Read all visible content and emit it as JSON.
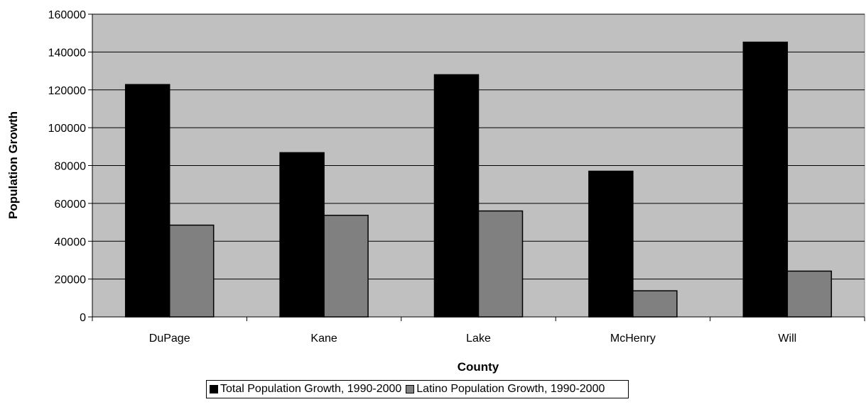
{
  "chart_data": {
    "type": "bar",
    "title": "",
    "xlabel": "County",
    "ylabel": "Population Growth",
    "categories": [
      "DuPage",
      "Kane",
      "Lake",
      "McHenry",
      "Will"
    ],
    "series": [
      {
        "name": "Total Population Growth, 1990-2000",
        "color": "#000000",
        "values": [
          122800,
          86800,
          128000,
          77000,
          145200
        ]
      },
      {
        "name": "Latino Population Growth, 1990-2000",
        "color": "#808080",
        "values": [
          48500,
          53700,
          56000,
          13800,
          24200
        ]
      }
    ],
    "ylim": [
      0,
      160000
    ],
    "yticks": [
      "0",
      "20000",
      "40000",
      "60000",
      "80000",
      "100000",
      "120000",
      "140000",
      "160000"
    ],
    "grid": true,
    "legend_position": "bottom",
    "plot_background": "#c0c0c0"
  }
}
